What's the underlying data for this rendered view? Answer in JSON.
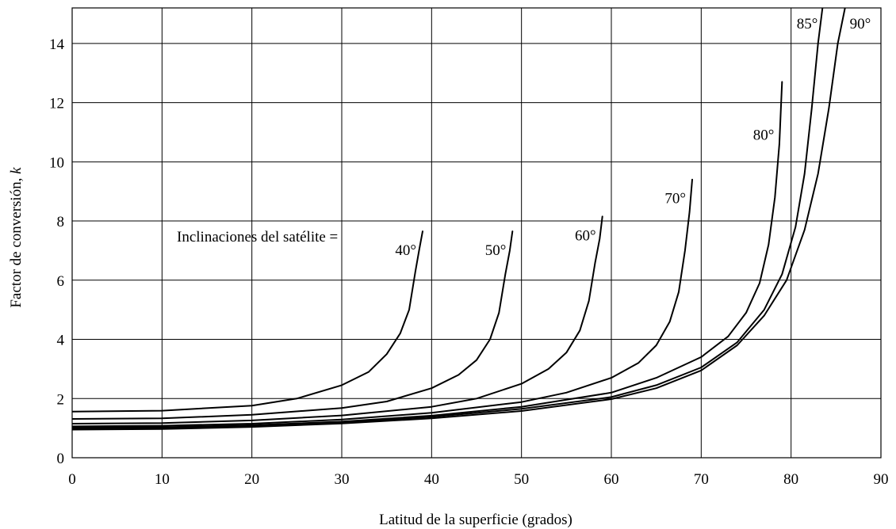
{
  "chart_data": {
    "type": "line",
    "xlabel": "Latitud de la superficie (grados)",
    "ylabel_text": "Factor de conversión, ",
    "ylabel_var": "k",
    "xlim": [
      0,
      90
    ],
    "ylim": [
      0,
      15.2
    ],
    "x_ticks": [
      0,
      10,
      20,
      30,
      40,
      50,
      60,
      70,
      80,
      90
    ],
    "y_ticks": [
      0,
      2,
      4,
      6,
      8,
      10,
      12,
      14
    ],
    "grid": true,
    "annotation": "Inclinaciones del satélite =",
    "series": [
      {
        "name": "40°",
        "points": [
          [
            0,
            1.56
          ],
          [
            10,
            1.59
          ],
          [
            20,
            1.76
          ],
          [
            25,
            2.0
          ],
          [
            30,
            2.45
          ],
          [
            33,
            2.9
          ],
          [
            35,
            3.5
          ],
          [
            36.5,
            4.2
          ],
          [
            37.5,
            5.0
          ],
          [
            38.2,
            6.3
          ],
          [
            38.6,
            7.0
          ],
          [
            39,
            7.65
          ]
        ]
      },
      {
        "name": "50°",
        "points": [
          [
            0,
            1.31
          ],
          [
            10,
            1.33
          ],
          [
            20,
            1.45
          ],
          [
            30,
            1.68
          ],
          [
            35,
            1.9
          ],
          [
            40,
            2.35
          ],
          [
            43,
            2.8
          ],
          [
            45,
            3.3
          ],
          [
            46.5,
            4.0
          ],
          [
            47.5,
            4.9
          ],
          [
            48.2,
            6.2
          ],
          [
            48.7,
            7.0
          ],
          [
            49,
            7.65
          ]
        ]
      },
      {
        "name": "60°",
        "points": [
          [
            0,
            1.15
          ],
          [
            10,
            1.17
          ],
          [
            20,
            1.26
          ],
          [
            30,
            1.43
          ],
          [
            40,
            1.72
          ],
          [
            45,
            2.0
          ],
          [
            50,
            2.5
          ],
          [
            53,
            3.0
          ],
          [
            55,
            3.55
          ],
          [
            56.5,
            4.3
          ],
          [
            57.5,
            5.3
          ],
          [
            58.2,
            6.6
          ],
          [
            58.7,
            7.4
          ],
          [
            59,
            8.15
          ]
        ]
      },
      {
        "name": "70°",
        "points": [
          [
            0,
            1.06
          ],
          [
            10,
            1.08
          ],
          [
            20,
            1.15
          ],
          [
            30,
            1.29
          ],
          [
            40,
            1.52
          ],
          [
            50,
            1.88
          ],
          [
            55,
            2.2
          ],
          [
            60,
            2.7
          ],
          [
            63,
            3.2
          ],
          [
            65,
            3.8
          ],
          [
            66.5,
            4.6
          ],
          [
            67.5,
            5.6
          ],
          [
            68.2,
            7.0
          ],
          [
            68.7,
            8.3
          ],
          [
            69,
            9.4
          ]
        ]
      },
      {
        "name": "80°",
        "points": [
          [
            0,
            1.02
          ],
          [
            10,
            1.03
          ],
          [
            20,
            1.1
          ],
          [
            30,
            1.22
          ],
          [
            40,
            1.42
          ],
          [
            50,
            1.72
          ],
          [
            60,
            2.2
          ],
          [
            65,
            2.7
          ],
          [
            70,
            3.4
          ],
          [
            73,
            4.1
          ],
          [
            75,
            4.9
          ],
          [
            76.5,
            5.9
          ],
          [
            77.5,
            7.2
          ],
          [
            78.2,
            8.8
          ],
          [
            78.7,
            10.6
          ],
          [
            79,
            12.7
          ]
        ]
      },
      {
        "name": "85°",
        "points": [
          [
            0,
            1.0
          ],
          [
            10,
            1.01
          ],
          [
            20,
            1.08
          ],
          [
            30,
            1.2
          ],
          [
            40,
            1.38
          ],
          [
            50,
            1.65
          ],
          [
            60,
            2.05
          ],
          [
            65,
            2.45
          ],
          [
            70,
            3.05
          ],
          [
            74,
            3.9
          ],
          [
            77,
            5.0
          ],
          [
            79,
            6.2
          ],
          [
            80.5,
            7.8
          ],
          [
            81.5,
            9.6
          ],
          [
            82.3,
            11.8
          ],
          [
            83,
            14.0
          ],
          [
            83.5,
            15.2
          ]
        ]
      },
      {
        "name": "90°",
        "points": [
          [
            0,
            0.95
          ],
          [
            10,
            0.97
          ],
          [
            20,
            1.04
          ],
          [
            30,
            1.16
          ],
          [
            40,
            1.33
          ],
          [
            50,
            1.58
          ],
          [
            60,
            1.98
          ],
          [
            65,
            2.35
          ],
          [
            70,
            2.95
          ],
          [
            74,
            3.8
          ],
          [
            77,
            4.8
          ],
          [
            79.5,
            6.0
          ],
          [
            81.5,
            7.7
          ],
          [
            83,
            9.6
          ],
          [
            84.2,
            11.8
          ],
          [
            85.2,
            14.0
          ],
          [
            86,
            15.2
          ]
        ]
      }
    ]
  }
}
